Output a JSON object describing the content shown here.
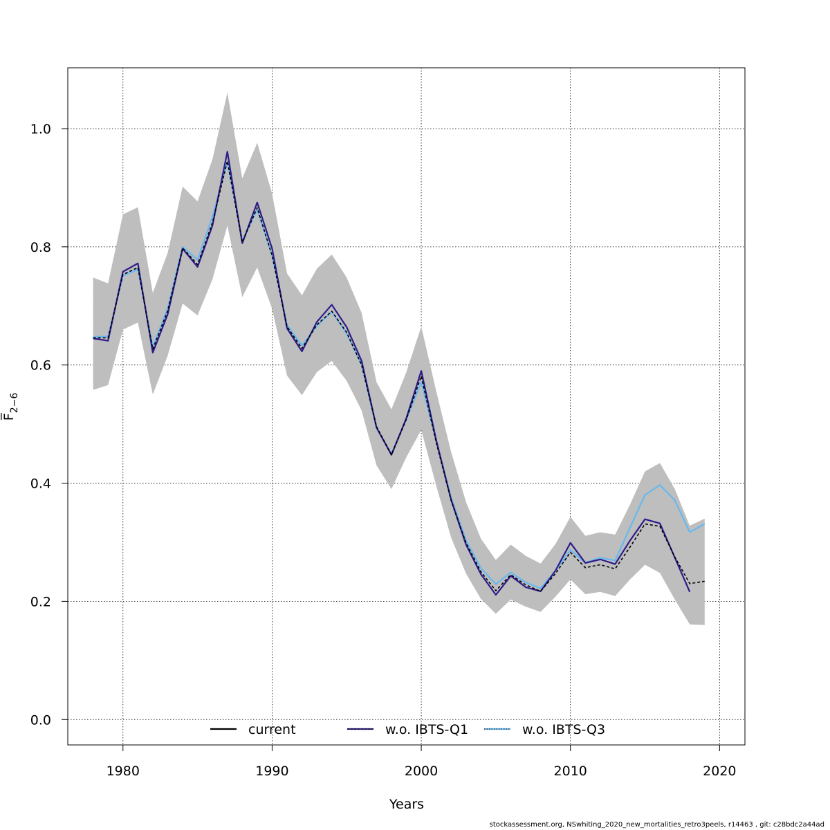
{
  "chart_data": {
    "type": "line",
    "title": "",
    "xlabel": "Years",
    "ylabel": "F̅",
    "ylabel_sub": "2−6",
    "xlim": [
      1976.3,
      2021.7
    ],
    "ylim": [
      -0.043,
      1.103
    ],
    "xticks": [
      1980,
      1990,
      2000,
      2010,
      2020
    ],
    "yticks": [
      0.0,
      0.2,
      0.4,
      0.6,
      0.8,
      1.0
    ],
    "ytick_labels": [
      "0.0",
      "0.2",
      "0.4",
      "0.6",
      "0.8",
      "1.0"
    ],
    "grid": true,
    "x": [
      1978,
      1979,
      1980,
      1981,
      1982,
      1983,
      1984,
      1985,
      1986,
      1987,
      1988,
      1989,
      1990,
      1991,
      1992,
      1993,
      1994,
      1995,
      1996,
      1997,
      1998,
      1999,
      2000,
      2001,
      2002,
      2003,
      2004,
      2005,
      2006,
      2007,
      2008,
      2009,
      2010,
      2011,
      2012,
      2013,
      2014,
      2015,
      2016,
      2017,
      2018,
      2019
    ],
    "band": {
      "name": "confidence interval",
      "color": "#bebebe",
      "upper": [
        0.748,
        0.738,
        0.855,
        0.867,
        0.722,
        0.79,
        0.902,
        0.877,
        0.948,
        1.061,
        0.916,
        0.976,
        0.89,
        0.755,
        0.718,
        0.763,
        0.787,
        0.748,
        0.688,
        0.571,
        0.525,
        0.588,
        0.665,
        0.556,
        0.453,
        0.368,
        0.306,
        0.27,
        0.296,
        0.277,
        0.264,
        0.297,
        0.343,
        0.311,
        0.317,
        0.313,
        0.364,
        0.42,
        0.434,
        0.39,
        0.328,
        0.34
      ],
      "lower": [
        0.558,
        0.566,
        0.66,
        0.672,
        0.55,
        0.616,
        0.704,
        0.684,
        0.745,
        0.836,
        0.715,
        0.765,
        0.695,
        0.582,
        0.549,
        0.588,
        0.607,
        0.573,
        0.523,
        0.43,
        0.39,
        0.444,
        0.49,
        0.396,
        0.308,
        0.247,
        0.204,
        0.179,
        0.203,
        0.191,
        0.182,
        0.208,
        0.237,
        0.212,
        0.216,
        0.209,
        0.237,
        0.262,
        0.248,
        0.203,
        0.161,
        0.16
      ]
    },
    "series": [
      {
        "name": "current",
        "color": "#000000",
        "dash": "solid",
        "values": [
          0.646,
          0.646,
          0.753,
          0.765,
          0.627,
          0.692,
          0.798,
          0.77,
          0.841,
          0.945,
          0.808,
          0.866,
          0.785,
          0.665,
          0.628,
          0.668,
          0.691,
          0.655,
          0.6,
          0.496,
          0.448,
          0.508,
          0.581,
          0.469,
          0.371,
          0.299,
          0.25,
          0.218,
          0.245,
          0.228,
          0.217,
          0.247,
          0.283,
          0.257,
          0.262,
          0.255,
          0.292,
          0.331,
          0.327,
          0.275,
          0.23,
          0.234
        ]
      },
      {
        "name": "w.o. IBTS-Q1",
        "color": "#2e1a8a",
        "dash": "solid",
        "values": [
          0.645,
          0.641,
          0.758,
          0.772,
          0.621,
          0.686,
          0.797,
          0.766,
          0.836,
          0.961,
          0.806,
          0.875,
          0.797,
          0.662,
          0.623,
          0.673,
          0.702,
          0.664,
          0.607,
          0.494,
          0.448,
          0.51,
          0.59,
          0.473,
          0.372,
          0.296,
          0.246,
          0.211,
          0.243,
          0.224,
          0.217,
          0.252,
          0.299,
          0.265,
          0.271,
          0.263,
          0.303,
          0.339,
          0.332,
          0.274,
          0.216,
          null
        ]
      },
      {
        "name": "w.o. IBTS-Q3",
        "color": "#68b8ef",
        "dash": "solid",
        "values": [
          0.648,
          0.648,
          0.751,
          0.762,
          0.631,
          0.696,
          0.8,
          0.778,
          0.851,
          0.944,
          0.81,
          0.863,
          0.785,
          0.668,
          0.633,
          0.666,
          0.69,
          0.653,
          0.601,
          0.493,
          0.45,
          0.508,
          0.571,
          0.472,
          0.376,
          0.303,
          0.256,
          0.229,
          0.249,
          0.232,
          0.222,
          0.252,
          0.287,
          0.265,
          0.274,
          0.269,
          0.325,
          0.38,
          0.397,
          0.371,
          0.317,
          0.331
        ]
      }
    ],
    "legend": {
      "placement": "bottom-center",
      "entries": [
        {
          "label": "current",
          "color": "#000000",
          "style": "solid"
        },
        {
          "label": "w.o. IBTS-Q1",
          "color": "#2e1a8a",
          "style": "solid-with-dash"
        },
        {
          "label": "w.o. IBTS-Q3",
          "color": "#68b8ef",
          "style": "dotted-with-dash"
        }
      ]
    }
  },
  "footer": "stockassessment.org, NSwhiting_2020_new_mortalities_retro3peels, r14463 , git: c28bdc2a44ad"
}
